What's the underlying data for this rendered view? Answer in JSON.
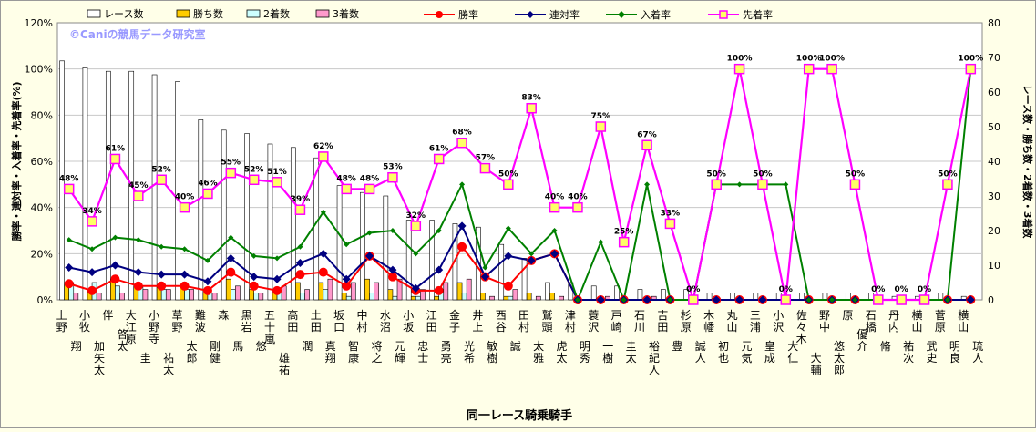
{
  "chart_data": {
    "type": "bar+line",
    "title": "",
    "watermark": "©Caniの競馬データ研究室",
    "xlabel": "同一レース騎乗騎手",
    "ylabel_left": "勝率・連対率・入着率・先着率(%)",
    "ylabel_right": "レース数・勝ち数・2着数・3着数",
    "ylim_left": [
      0,
      120
    ],
    "ylim_right": [
      0,
      80
    ],
    "yticks_left": [
      "0%",
      "20%",
      "40%",
      "60%",
      "80%",
      "100%",
      "120%"
    ],
    "yticks_right": [
      "0",
      "10",
      "20",
      "30",
      "40",
      "50",
      "60",
      "70",
      "80"
    ],
    "legend_position": "top",
    "categories": [
      "上野 翔",
      "小牧 加矢太",
      "伴 啓太",
      "大江原 圭",
      "小野寺 祐太",
      "草野 太郎",
      "難波 剛健",
      "森 一馬",
      "黒岩 悠",
      "五十嵐 雄祐",
      "高田 潤",
      "土田 真翔",
      "坂口 智康",
      "中村 将之",
      "水沼 元輝",
      "小坂 忠士",
      "江田 勇亮",
      "金子 光希",
      "井上 敏樹",
      "西谷 誠",
      "田村 太雅",
      "鷲頭 虎太",
      "津村 明秀",
      "蓑沢 一樹",
      "戸崎 圭太",
      "石川 裕紀人",
      "吉田 豊",
      "杉原 誠人",
      "木幡 初也",
      "丸山 元気",
      "三浦 皇成",
      "小沢 大仁",
      "佐々木 大輔",
      "野中 悠太郎",
      "原 優介",
      "石橋 脩",
      "丹内 祐次",
      "横山 武史",
      "菅原 明良",
      "横山 琉人"
    ],
    "bar_series": [
      {
        "name": "レース数",
        "color": "#ffffff",
        "values": [
          69,
          67,
          66,
          66,
          65,
          63,
          52,
          49,
          48,
          45,
          44,
          41,
          33,
          31,
          30,
          23,
          23,
          22,
          21,
          16,
          12,
          5,
          5,
          4,
          4,
          3,
          3,
          3,
          2,
          2,
          2,
          2,
          2,
          2,
          2,
          2,
          1,
          1,
          2,
          1
        ]
      },
      {
        "name": "勝ち数",
        "color": "#ffcc00",
        "values": [
          5,
          3,
          6,
          4,
          4,
          4,
          2,
          6,
          3,
          2,
          5,
          5,
          2,
          6,
          3,
          1,
          1,
          5,
          2,
          1,
          2,
          2,
          0,
          0,
          0,
          0,
          0,
          0,
          0,
          0,
          0,
          0,
          0,
          0,
          0,
          0,
          0,
          0,
          0,
          0
        ]
      },
      {
        "name": "2着数",
        "color": "#ccffff",
        "values": [
          5,
          5,
          4,
          4,
          3,
          3,
          2,
          3,
          2,
          2,
          2,
          3,
          1,
          2,
          1,
          1,
          2,
          2,
          0,
          1,
          0,
          0,
          0,
          0,
          0,
          0,
          0,
          0,
          0,
          0,
          0,
          0,
          0,
          0,
          0,
          0,
          0,
          0,
          0,
          0
        ]
      },
      {
        "name": "3着数",
        "color": "#ff99cc",
        "values": [
          2,
          2,
          2,
          3,
          3,
          3,
          2,
          4,
          2,
          4,
          3,
          6,
          5,
          5,
          6,
          3,
          5,
          6,
          1,
          3,
          1,
          1,
          0,
          1,
          0,
          1,
          0,
          0,
          0,
          0,
          0,
          0,
          0,
          0,
          0,
          0,
          0,
          0,
          0,
          0
        ]
      }
    ],
    "line_series": [
      {
        "name": "勝率",
        "color": "#ff0000",
        "values": [
          7,
          4,
          9,
          6,
          6,
          6,
          4,
          12,
          6,
          4,
          11,
          12,
          6,
          19,
          10,
          4,
          4,
          23,
          10,
          6,
          17,
          20,
          0,
          0,
          0,
          0,
          0,
          0,
          0,
          0,
          0,
          0,
          0,
          0,
          0,
          0,
          0,
          0,
          0,
          0
        ]
      },
      {
        "name": "連対率",
        "color": "#000080",
        "values": [
          14,
          12,
          15,
          12,
          11,
          11,
          8,
          18,
          10,
          9,
          16,
          20,
          9,
          19,
          13,
          5,
          13,
          32,
          10,
          19,
          17,
          20,
          0,
          0,
          0,
          0,
          0,
          0,
          0,
          0,
          0,
          0,
          0,
          0,
          0,
          0,
          0,
          0,
          0,
          0
        ]
      },
      {
        "name": "入着率",
        "color": "#008000",
        "values": [
          26,
          22,
          27,
          26,
          23,
          22,
          17,
          27,
          19,
          18,
          23,
          38,
          24,
          29,
          30,
          20,
          30,
          50,
          14,
          31,
          20,
          30,
          0,
          25,
          0,
          50,
          0,
          0,
          50,
          50,
          50,
          50,
          0,
          0,
          0,
          0,
          0,
          0,
          0,
          100
        ]
      },
      {
        "name": "先着率",
        "color": "#ff00ff",
        "values": [
          48,
          34,
          61,
          45,
          52,
          40,
          46,
          55,
          52,
          51,
          39,
          62,
          48,
          48,
          53,
          32,
          61,
          68,
          57,
          50,
          83,
          40,
          40,
          75,
          25,
          67,
          33,
          0,
          50,
          100,
          50,
          0,
          100,
          100,
          50,
          0,
          0,
          0,
          50,
          100
        ]
      }
    ],
    "data_labels": [
      "48%",
      "34%",
      "61%",
      "45%",
      "52%",
      "40%",
      "46%",
      "55%",
      "52%",
      "51%",
      "39%",
      "62%",
      "48%",
      "48%",
      "53%",
      "32%",
      "61%",
      "68%",
      "57%",
      "50%",
      "83%",
      "40%",
      "40%",
      "75%",
      "25%",
      "67%",
      "33%",
      "0%",
      "50%",
      "100%",
      "50%",
      "0%",
      "100%",
      "100%",
      "50%",
      "0%",
      "0%",
      "0%",
      "50%",
      "100%"
    ]
  }
}
